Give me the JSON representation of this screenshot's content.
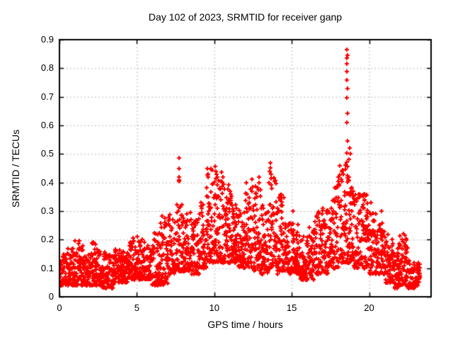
{
  "title": "Day 102 of 2023, SRMTID for receiver ganp",
  "axes": {
    "xlabel": "GPS time / hours",
    "ylabel": "SRMTID / TECUs"
  },
  "chart_data": {
    "type": "scatter",
    "title": "Day 102 of 2023, SRMTID for receiver ganp",
    "xlabel": "GPS time / hours",
    "ylabel": "SRMTID / TECUs",
    "xlim": [
      0,
      24
    ],
    "ylim": [
      0,
      0.9
    ],
    "xticks": [
      0,
      5,
      10,
      15,
      20
    ],
    "xtick_labels": [
      "0",
      "5",
      "10",
      "15",
      "20"
    ],
    "yticks": [
      0,
      0.1,
      0.2,
      0.3,
      0.4,
      0.5,
      0.6,
      0.7,
      0.8,
      0.9
    ],
    "ytick_labels": [
      "0",
      "0.1",
      "0.2",
      "0.3",
      "0.4",
      "0.5",
      "0.6",
      "0.7",
      "0.8",
      "0.9"
    ],
    "grid": true,
    "grid_style": "dashed",
    "grid_color": "#b8b8b8",
    "border_color": "#000000",
    "marker": "plus",
    "marker_color": "#ff0000",
    "series": [
      {
        "name": "SRMTID",
        "color": "#ff0000",
        "envelope_bins": [
          [
            0.0,
            0.5,
            0.04,
            0.15,
            55
          ],
          [
            0.5,
            1.0,
            0.04,
            0.17,
            55
          ],
          [
            1.0,
            1.5,
            0.04,
            0.2,
            55
          ],
          [
            1.5,
            2.0,
            0.04,
            0.15,
            55
          ],
          [
            2.0,
            2.5,
            0.04,
            0.19,
            55
          ],
          [
            2.5,
            3.0,
            0.03,
            0.16,
            55
          ],
          [
            3.0,
            3.5,
            0.03,
            0.15,
            55
          ],
          [
            3.5,
            4.0,
            0.05,
            0.17,
            55
          ],
          [
            4.0,
            4.5,
            0.05,
            0.16,
            55
          ],
          [
            4.5,
            5.0,
            0.06,
            0.2,
            55
          ],
          [
            5.0,
            5.5,
            0.06,
            0.21,
            55
          ],
          [
            5.5,
            6.0,
            0.06,
            0.18,
            55
          ],
          [
            6.0,
            6.5,
            0.04,
            0.24,
            55
          ],
          [
            6.5,
            7.0,
            0.04,
            0.28,
            55
          ],
          [
            7.0,
            7.5,
            0.08,
            0.29,
            55
          ],
          [
            7.5,
            8.0,
            0.09,
            0.33,
            55
          ],
          [
            8.0,
            8.5,
            0.09,
            0.3,
            55
          ],
          [
            8.5,
            9.0,
            0.08,
            0.27,
            55
          ],
          [
            9.0,
            9.5,
            0.1,
            0.33,
            55
          ],
          [
            9.5,
            10.0,
            0.12,
            0.45,
            60
          ],
          [
            10.0,
            10.5,
            0.12,
            0.44,
            60
          ],
          [
            10.5,
            11.0,
            0.12,
            0.4,
            60
          ],
          [
            11.0,
            11.5,
            0.12,
            0.38,
            60
          ],
          [
            11.5,
            12.0,
            0.1,
            0.31,
            55
          ],
          [
            12.0,
            12.5,
            0.1,
            0.4,
            55
          ],
          [
            12.5,
            13.0,
            0.09,
            0.4,
            55
          ],
          [
            13.0,
            13.5,
            0.08,
            0.33,
            55
          ],
          [
            13.5,
            14.0,
            0.1,
            0.45,
            55
          ],
          [
            14.0,
            14.5,
            0.08,
            0.36,
            55
          ],
          [
            14.5,
            15.0,
            0.08,
            0.26,
            55
          ],
          [
            15.0,
            15.5,
            0.08,
            0.26,
            55
          ],
          [
            15.5,
            16.0,
            0.06,
            0.22,
            55
          ],
          [
            16.0,
            16.5,
            0.06,
            0.25,
            55
          ],
          [
            16.5,
            17.0,
            0.08,
            0.3,
            55
          ],
          [
            17.0,
            17.5,
            0.08,
            0.31,
            55
          ],
          [
            17.5,
            18.0,
            0.1,
            0.4,
            55
          ],
          [
            18.0,
            18.5,
            0.12,
            0.46,
            60
          ],
          [
            18.5,
            19.0,
            0.12,
            0.43,
            60
          ],
          [
            19.0,
            19.5,
            0.1,
            0.36,
            55
          ],
          [
            19.5,
            20.0,
            0.1,
            0.36,
            55
          ],
          [
            20.0,
            20.5,
            0.08,
            0.3,
            55
          ],
          [
            20.5,
            21.0,
            0.08,
            0.26,
            55
          ],
          [
            21.0,
            21.5,
            0.05,
            0.22,
            55
          ],
          [
            21.5,
            22.0,
            0.03,
            0.2,
            55
          ],
          [
            22.0,
            22.5,
            0.04,
            0.22,
            55
          ],
          [
            22.5,
            23.0,
            0.03,
            0.13,
            50
          ],
          [
            23.0,
            23.3,
            0.04,
            0.12,
            30
          ]
        ],
        "peak_points": [
          [
            1.02,
            0.195
          ],
          [
            2.2,
            0.19
          ],
          [
            4.75,
            0.205
          ],
          [
            5.05,
            0.21
          ],
          [
            6.65,
            0.283
          ],
          [
            7.15,
            0.288
          ],
          [
            7.72,
            0.486
          ],
          [
            7.72,
            0.449
          ],
          [
            7.73,
            0.42
          ],
          [
            7.74,
            0.41
          ],
          [
            7.72,
            0.405
          ],
          [
            7.7,
            0.3
          ],
          [
            7.75,
            0.27
          ],
          [
            8.52,
            0.27
          ],
          [
            9.55,
            0.449
          ],
          [
            9.58,
            0.43
          ],
          [
            9.62,
            0.42
          ],
          [
            10.05,
            0.455
          ],
          [
            10.1,
            0.44
          ],
          [
            10.15,
            0.43
          ],
          [
            10.2,
            0.42
          ],
          [
            10.55,
            0.42
          ],
          [
            10.9,
            0.377
          ],
          [
            11.0,
            0.37
          ],
          [
            11.05,
            0.36
          ],
          [
            12.42,
            0.411
          ],
          [
            12.9,
            0.419
          ],
          [
            12.88,
            0.4
          ],
          [
            13.6,
            0.469
          ],
          [
            13.63,
            0.452
          ],
          [
            13.58,
            0.44
          ],
          [
            13.65,
            0.43
          ],
          [
            14.25,
            0.357
          ],
          [
            15.1,
            0.3
          ],
          [
            17.0,
            0.31
          ],
          [
            18.3,
            0.444
          ],
          [
            18.35,
            0.43
          ],
          [
            18.45,
            0.46
          ],
          [
            18.75,
            0.52
          ],
          [
            18.8,
            0.5
          ],
          [
            18.7,
            0.48
          ],
          [
            19.62,
            0.357
          ],
          [
            19.7,
            0.34
          ],
          [
            20.1,
            0.33
          ],
          [
            20.8,
            0.3
          ],
          [
            22.2,
            0.22
          ]
        ],
        "spike_column_x": 18.57,
        "spike_column_values": [
          0.866,
          0.845,
          0.835,
          0.815,
          0.788,
          0.758,
          0.728,
          0.697,
          0.641,
          0.611,
          0.546,
          0.503,
          0.47,
          0.455
        ]
      }
    ]
  }
}
